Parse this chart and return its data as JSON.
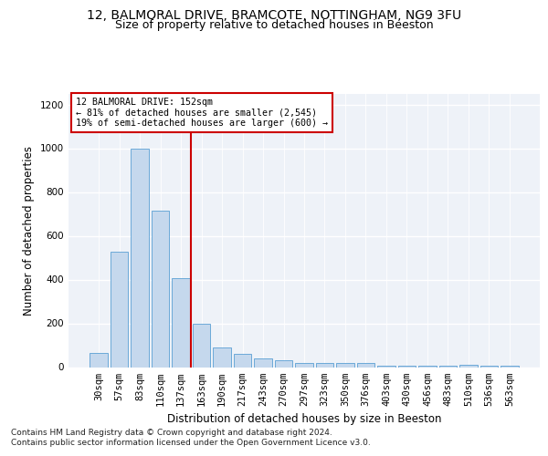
{
  "title_line1": "12, BALMORAL DRIVE, BRAMCOTE, NOTTINGHAM, NG9 3FU",
  "title_line2": "Size of property relative to detached houses in Beeston",
  "xlabel": "Distribution of detached houses by size in Beeston",
  "ylabel": "Number of detached properties",
  "categories": [
    "30sqm",
    "57sqm",
    "83sqm",
    "110sqm",
    "137sqm",
    "163sqm",
    "190sqm",
    "217sqm",
    "243sqm",
    "270sqm",
    "297sqm",
    "323sqm",
    "350sqm",
    "376sqm",
    "403sqm",
    "430sqm",
    "456sqm",
    "483sqm",
    "510sqm",
    "536sqm",
    "563sqm"
  ],
  "values": [
    65,
    528,
    1000,
    715,
    408,
    197,
    88,
    60,
    38,
    30,
    18,
    18,
    20,
    18,
    5,
    5,
    5,
    5,
    10,
    5,
    5
  ],
  "bar_color": "#c5d8ed",
  "bar_edge_color": "#5a9fd4",
  "ref_line_index": 4.5,
  "ref_line_color": "#cc0000",
  "annotation_box_text": "12 BALMORAL DRIVE: 152sqm\n← 81% of detached houses are smaller (2,545)\n19% of semi-detached houses are larger (600) →",
  "annotation_box_color": "#cc0000",
  "footnote_line1": "Contains HM Land Registry data © Crown copyright and database right 2024.",
  "footnote_line2": "Contains public sector information licensed under the Open Government Licence v3.0.",
  "background_color": "#eef2f8",
  "ylim": [
    0,
    1250
  ],
  "yticks": [
    0,
    200,
    400,
    600,
    800,
    1000,
    1200
  ],
  "title_fontsize": 10,
  "subtitle_fontsize": 9,
  "axis_label_fontsize": 8.5,
  "tick_fontsize": 7.5,
  "footnote_fontsize": 6.5
}
